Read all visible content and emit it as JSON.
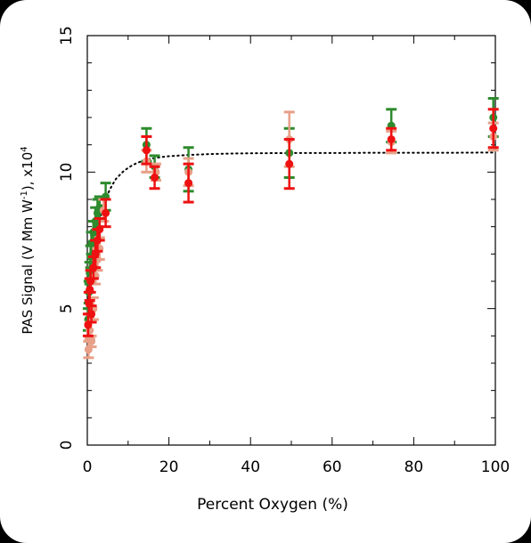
{
  "chart_data": {
    "type": "scatter",
    "title": "",
    "xlabel": "Percent Oxygen (%)",
    "ylabel_main": "PAS Signal (V Mm W",
    "ylabel_exp1": "-1",
    "ylabel_mid": "), x10",
    "ylabel_exp2": "4",
    "xlim": [
      0,
      100
    ],
    "ylim": [
      0,
      15
    ],
    "xticks": [
      0,
      20,
      40,
      60,
      80,
      100
    ],
    "yticks": [
      0,
      5,
      10,
      15
    ],
    "grid": false,
    "legend": "none",
    "series": [
      {
        "color": "#2e8b2e",
        "points": [
          {
            "x": 0.2,
            "y": 4.6,
            "err": 0.4
          },
          {
            "x": 0.4,
            "y": 5.6,
            "err": 0.4
          },
          {
            "x": 0.6,
            "y": 6.3,
            "err": 0.4
          },
          {
            "x": 0.8,
            "y": 6.9,
            "err": 0.4
          },
          {
            "x": 1.0,
            "y": 7.4,
            "err": 0.4
          },
          {
            "x": 1.5,
            "y": 7.8,
            "err": 0.4
          },
          {
            "x": 2.0,
            "y": 8.2,
            "err": 0.5
          },
          {
            "x": 2.5,
            "y": 8.5,
            "err": 0.5
          },
          {
            "x": 3.0,
            "y": 8.7,
            "err": 0.4
          },
          {
            "x": 4.5,
            "y": 9.1,
            "err": 0.5
          },
          {
            "x": 14.5,
            "y": 11.0,
            "err": 0.6
          },
          {
            "x": 16.5,
            "y": 10.2,
            "err": 0.4
          },
          {
            "x": 24.8,
            "y": 10.1,
            "err": 0.8
          },
          {
            "x": 49.5,
            "y": 10.7,
            "err": 0.9
          },
          {
            "x": 74.5,
            "y": 11.7,
            "err": 0.6
          },
          {
            "x": 99.5,
            "y": 12.0,
            "err": 0.7
          }
        ]
      },
      {
        "color": "#e8a088",
        "points": [
          {
            "x": 0.3,
            "y": 3.5,
            "err": 0.3
          },
          {
            "x": 0.6,
            "y": 4.2,
            "err": 0.3
          },
          {
            "x": 1.0,
            "y": 3.8,
            "err": 0.2
          },
          {
            "x": 1.5,
            "y": 5.0,
            "err": 0.4
          },
          {
            "x": 2.0,
            "y": 6.2,
            "err": 0.3
          },
          {
            "x": 2.5,
            "y": 6.8,
            "err": 0.4
          },
          {
            "x": 3.0,
            "y": 7.2,
            "err": 0.4
          },
          {
            "x": 4.0,
            "y": 8.6,
            "err": 0.4
          },
          {
            "x": 14.5,
            "y": 10.4,
            "err": 0.4
          },
          {
            "x": 16.8,
            "y": 10.0,
            "err": 0.3
          },
          {
            "x": 24.8,
            "y": 10.0,
            "err": 0.5
          },
          {
            "x": 49.5,
            "y": 11.2,
            "err": 1.0
          },
          {
            "x": 74.5,
            "y": 11.1,
            "err": 0.4
          },
          {
            "x": 99.5,
            "y": 11.3,
            "err": 0.5
          }
        ]
      },
      {
        "color": "#ee1111",
        "points": [
          {
            "x": 0.2,
            "y": 4.4,
            "err": 0.4
          },
          {
            "x": 0.4,
            "y": 5.2,
            "err": 0.4
          },
          {
            "x": 0.6,
            "y": 5.7,
            "err": 0.4
          },
          {
            "x": 0.8,
            "y": 6.0,
            "err": 0.4
          },
          {
            "x": 1.0,
            "y": 4.8,
            "err": 0.3
          },
          {
            "x": 1.5,
            "y": 6.5,
            "err": 0.4
          },
          {
            "x": 2.0,
            "y": 7.0,
            "err": 0.5
          },
          {
            "x": 2.5,
            "y": 7.5,
            "err": 0.4
          },
          {
            "x": 3.0,
            "y": 7.9,
            "err": 0.4
          },
          {
            "x": 4.5,
            "y": 8.5,
            "err": 0.5
          },
          {
            "x": 14.5,
            "y": 10.8,
            "err": 0.5
          },
          {
            "x": 16.5,
            "y": 9.8,
            "err": 0.4
          },
          {
            "x": 24.8,
            "y": 9.6,
            "err": 0.7
          },
          {
            "x": 49.5,
            "y": 10.3,
            "err": 0.9
          },
          {
            "x": 74.5,
            "y": 11.2,
            "err": 0.4
          },
          {
            "x": 99.5,
            "y": 11.6,
            "err": 0.7
          }
        ]
      }
    ],
    "fit": {
      "style": "dotted",
      "color": "#000000",
      "x": [
        0,
        1,
        2,
        3,
        4,
        5,
        6,
        7,
        8,
        9,
        10,
        11,
        12,
        13,
        14,
        15,
        16,
        18,
        20,
        22,
        25,
        30,
        35,
        40,
        50,
        60,
        70,
        80,
        90,
        100
      ],
      "y": [
        4.5,
        6.2,
        7.4,
        8.25,
        8.8,
        9.2,
        9.5,
        9.75,
        9.9,
        10.05,
        10.15,
        10.25,
        10.32,
        10.38,
        10.43,
        10.47,
        10.5,
        10.55,
        10.58,
        10.6,
        10.63,
        10.66,
        10.68,
        10.69,
        10.7,
        10.7,
        10.71,
        10.71,
        10.71,
        10.72
      ]
    }
  }
}
